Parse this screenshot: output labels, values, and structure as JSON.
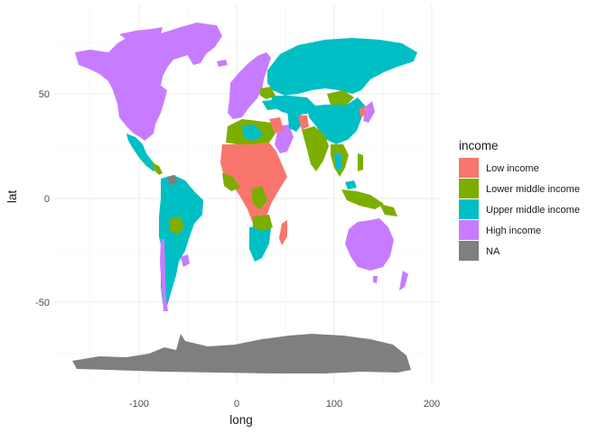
{
  "chart_data": {
    "type": "choropleth-map",
    "xlabel": "long",
    "ylabel": "lat",
    "x_ticks": [
      "-100",
      "0",
      "100",
      "200"
    ],
    "y_ticks": [
      "50",
      "0",
      "-50"
    ],
    "legend_title": "income",
    "categories": [
      {
        "label": "Low income",
        "color": "#F8766D"
      },
      {
        "label": "Lower middle income",
        "color": "#7CAE00"
      },
      {
        "label": "Upper middle income",
        "color": "#00BFC4"
      },
      {
        "label": "High income",
        "color": "#C77CFF"
      },
      {
        "label": "NA",
        "color": "#7F7F7F"
      }
    ],
    "grid": true,
    "legend_position": "right"
  }
}
